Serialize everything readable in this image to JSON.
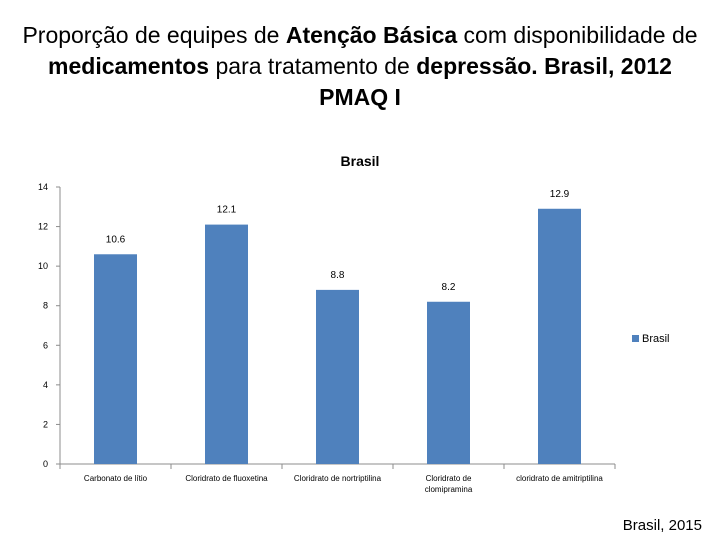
{
  "slide": {
    "title_parts": [
      {
        "text": "Proporção de equipes de ",
        "bold": false
      },
      {
        "text": "Atenção Básica",
        "bold": true
      },
      {
        "text": " com disponibilidade de ",
        "bold": false
      },
      {
        "text": "medicamentos",
        "bold": true
      },
      {
        "text": " para tratamento de ",
        "bold": false
      },
      {
        "text": "depressão. Brasil, 2012 PMAQ I",
        "bold": true
      }
    ],
    "footer": "Brasil, 2015"
  },
  "chart_data": {
    "type": "bar",
    "title": "Brasil",
    "categories": [
      [
        "Carbonato de lítio"
      ],
      [
        "Cloridrato de fluoxetina"
      ],
      [
        "Cloridrato de nortriptilina"
      ],
      [
        "Cloridrato de",
        "clomipramina"
      ],
      [
        "cloridrato de amitriptilina"
      ]
    ],
    "series": [
      {
        "name": "Brasil",
        "values": [
          10.6,
          12.1,
          8.8,
          8.2,
          12.9
        ],
        "color": "#4f81bd"
      }
    ],
    "data_labels": [
      "10.6",
      "12.1",
      "8.8",
      "8.2",
      "12.9"
    ],
    "ylim": [
      0,
      14
    ],
    "yticks": [
      0,
      2,
      4,
      6,
      8,
      10,
      12,
      14
    ],
    "grid": false,
    "legend_position": "right"
  }
}
